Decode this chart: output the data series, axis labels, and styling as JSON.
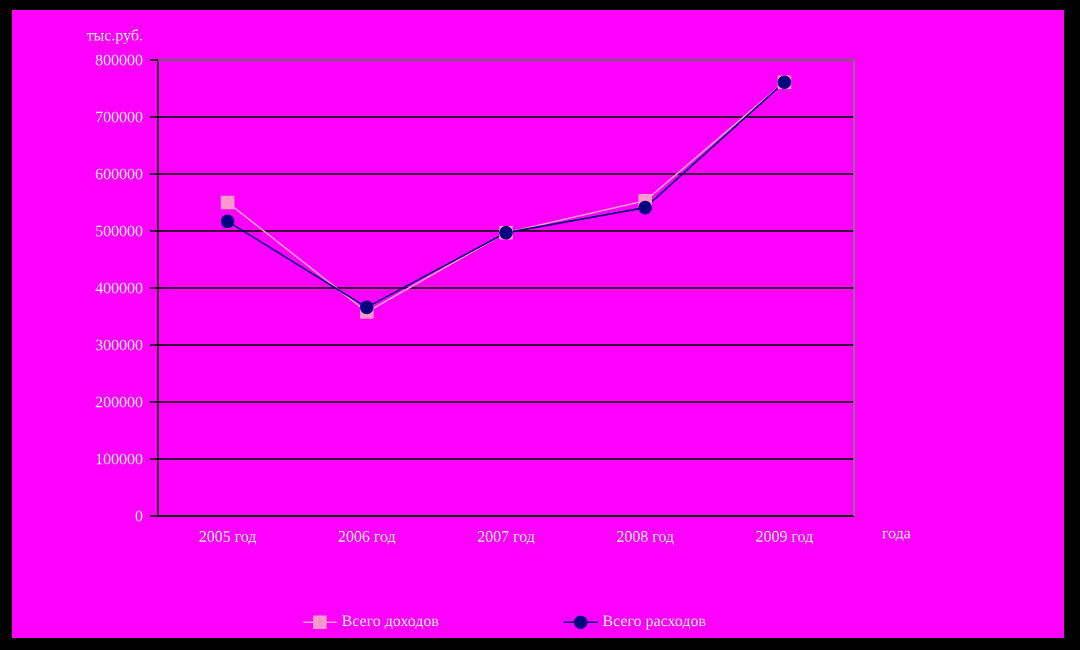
{
  "chart_data": {
    "type": "line",
    "ylabel": "тыс.руб.",
    "xlabel": "года",
    "categories": [
      "2005 год",
      "2006 год",
      "2007 год",
      "2008 год",
      "2009 год"
    ],
    "series": [
      {
        "name": "Всего доходов",
        "color": "#ff99cc",
        "marker": "square",
        "values": [
          550000,
          358000,
          497000,
          553000,
          761000
        ]
      },
      {
        "name": "Всего расходов",
        "color": "#000080",
        "marker": "circle",
        "values": [
          517000,
          366000,
          497000,
          541000,
          761000
        ]
      }
    ],
    "ylim": [
      0,
      800000
    ],
    "yticks": [
      0,
      100000,
      200000,
      300000,
      400000,
      500000,
      600000,
      700000,
      800000
    ],
    "grid": "y",
    "legend": "bottom",
    "line_style": "solid"
  }
}
